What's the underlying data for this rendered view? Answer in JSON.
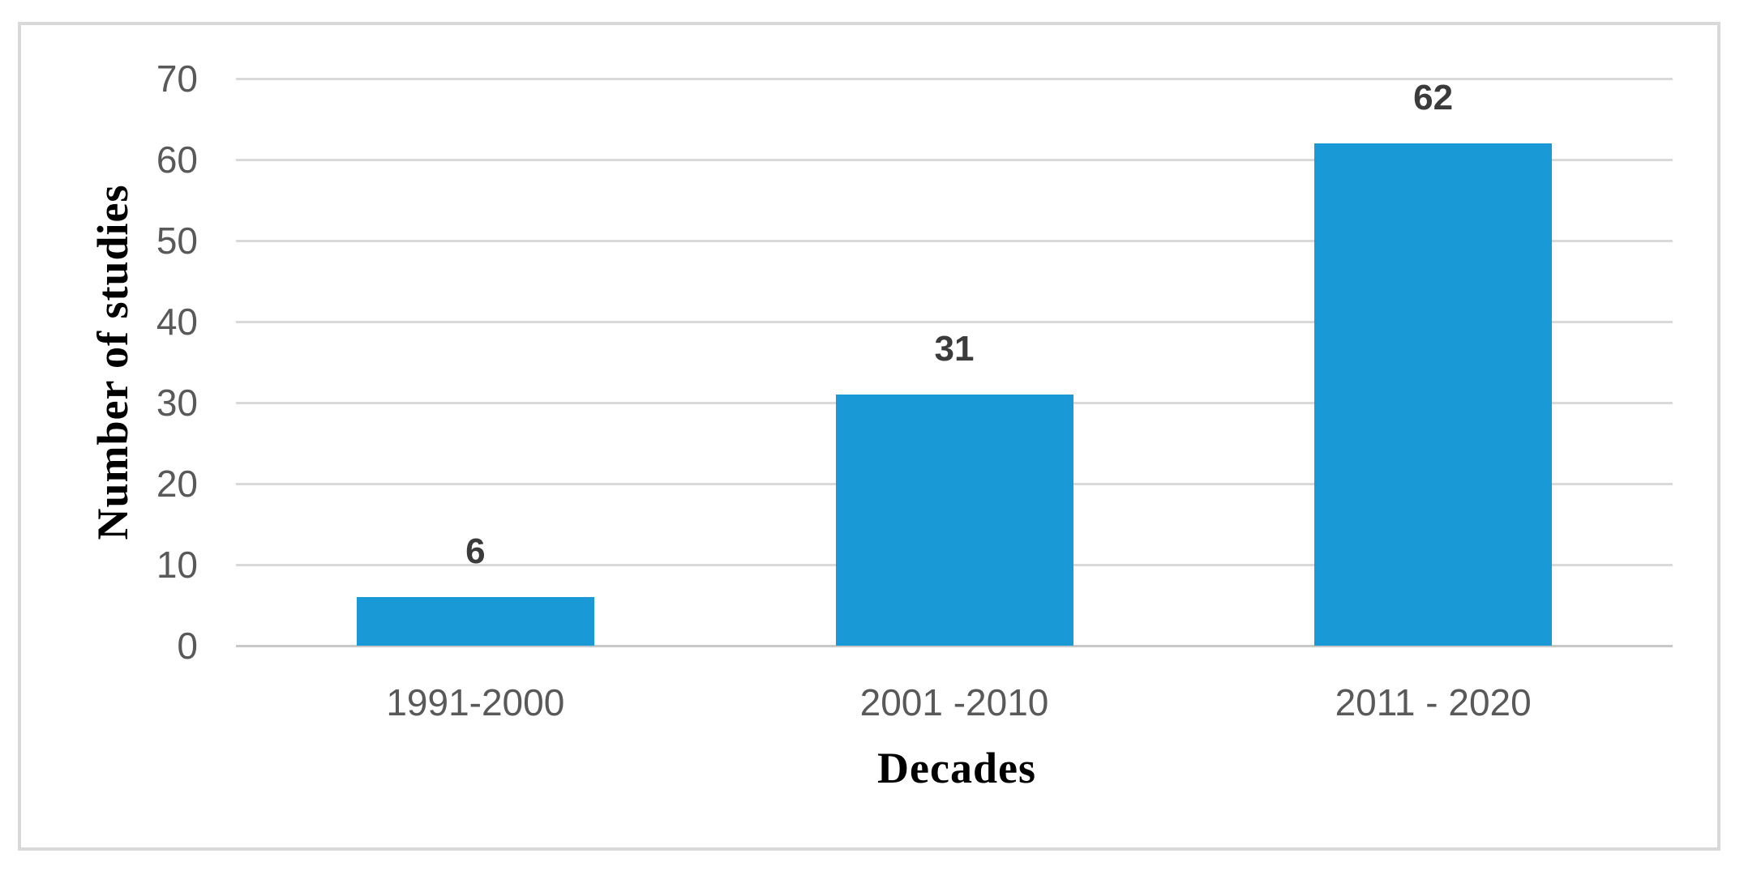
{
  "chart_data": {
    "type": "bar",
    "title": "",
    "categories": [
      "1991-2000",
      "2001 -2010",
      "2011 - 2020"
    ],
    "values": [
      6,
      31,
      62
    ],
    "data_labels": [
      "6",
      "31",
      "62"
    ],
    "xlabel": "Decades",
    "ylabel": "Number of studies",
    "yticks": [
      0,
      10,
      20,
      30,
      40,
      50,
      60,
      70
    ],
    "ylim": [
      0,
      70
    ],
    "grid": true,
    "legend_position": "none",
    "colors": {
      "bar": "#1999d5",
      "gridline": "#d9d9d9",
      "axis_line": "#c8c8c8",
      "tick_label": "#595959",
      "category_label": "#595959",
      "data_label": "#3b3b3b",
      "axis_title": "#000000",
      "frame_border": "#d9d9d9",
      "background": "#ffffff"
    }
  }
}
